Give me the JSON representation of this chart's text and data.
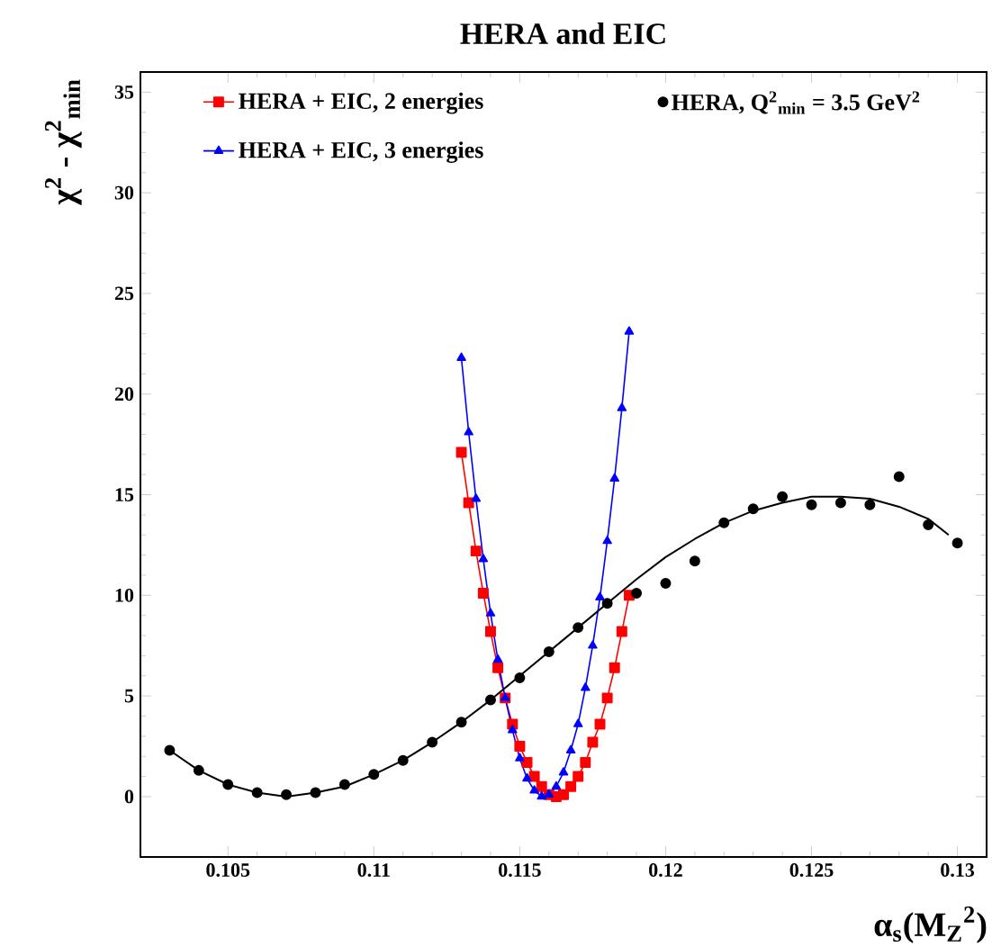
{
  "chart_data": {
    "type": "line",
    "title": "HERA and EIC",
    "xlabel": "α$_{s}$(M$_{Z}$$^{2}$)",
    "ylabel": "χ$^{2}$ - χ$^{2}$$_{min}$",
    "xlim": [
      0.102,
      0.131
    ],
    "ylim": [
      -3,
      36
    ],
    "xticks": [
      0.105,
      0.11,
      0.115,
      0.12,
      0.125,
      0.13
    ],
    "yticks": [
      0,
      5,
      10,
      15,
      20,
      25,
      30,
      35
    ],
    "grid": false,
    "legend": "top",
    "series": [
      {
        "name": "HERA + EIC, 2 energies",
        "marker": "square",
        "color": "#ff0000",
        "x": [
          0.113,
          0.11325,
          0.1135,
          0.11375,
          0.114,
          0.11425,
          0.1145,
          0.11475,
          0.115,
          0.11525,
          0.1155,
          0.11575,
          0.116,
          0.11625,
          0.1165,
          0.11675,
          0.117,
          0.11725,
          0.1175,
          0.11775,
          0.118,
          0.11825,
          0.1185,
          0.11875
        ],
        "values": [
          17.1,
          14.6,
          12.2,
          10.1,
          8.2,
          6.4,
          4.9,
          3.6,
          2.5,
          1.7,
          1.0,
          0.5,
          0.1,
          0.0,
          0.1,
          0.5,
          1.0,
          1.7,
          2.7,
          3.6,
          4.9,
          6.4,
          8.2,
          10.0
        ]
      },
      {
        "name": "HERA, Q$^{2}$$_{min}$ =  3.5 GeV$^{2}$",
        "type": "scatter",
        "marker": "circle",
        "color": "#000000",
        "x": [
          0.103,
          0.104,
          0.105,
          0.106,
          0.107,
          0.108,
          0.109,
          0.11,
          0.111,
          0.112,
          0.113,
          0.114,
          0.115,
          0.116,
          0.117,
          0.118,
          0.119,
          0.12,
          0.121,
          0.122,
          0.123,
          0.124,
          0.125,
          0.126,
          0.127,
          0.128,
          0.129,
          0.13
        ],
        "values": [
          2.3,
          1.3,
          0.6,
          0.2,
          0.1,
          0.2,
          0.6,
          1.1,
          1.8,
          2.7,
          3.7,
          4.8,
          5.9,
          7.2,
          8.4,
          9.6,
          10.1,
          10.6,
          11.7,
          13.6,
          14.3,
          14.9,
          14.5,
          14.6,
          14.5,
          15.9,
          13.5,
          12.6
        ]
      },
      {
        "name": "HERA + EIC, 3 energies",
        "marker": "triangle",
        "color": "#0000ff",
        "x": [
          0.113,
          0.11325,
          0.1135,
          0.11375,
          0.114,
          0.11425,
          0.1145,
          0.11475,
          0.115,
          0.11525,
          0.1155,
          0.11575,
          0.116,
          0.11625,
          0.1165,
          0.11675,
          0.117,
          0.11725,
          0.1175,
          0.11775,
          0.118,
          0.11825,
          0.1185,
          0.11875
        ],
        "values": [
          21.8,
          18.1,
          14.8,
          11.8,
          9.1,
          6.8,
          4.9,
          3.3,
          1.9,
          0.9,
          0.3,
          0.0,
          0.1,
          0.5,
          1.2,
          2.3,
          3.6,
          5.4,
          7.5,
          9.9,
          12.7,
          15.8,
          19.3,
          23.1
        ]
      },
      {
        "marker": "none",
        "color": "#000000",
        "x": [
          0.103,
          0.104,
          0.105,
          0.106,
          0.107,
          0.108,
          0.109,
          0.11,
          0.111,
          0.112,
          0.113,
          0.114,
          0.115,
          0.116,
          0.117,
          0.118,
          0.119,
          0.12,
          0.121,
          0.122,
          0.123,
          0.124,
          0.125,
          0.126,
          0.127,
          0.128,
          0.129,
          0.1297
        ],
        "values": [
          2.3,
          1.3,
          0.6,
          0.2,
          0.0,
          0.2,
          0.5,
          1.1,
          1.8,
          2.7,
          3.7,
          4.8,
          6.0,
          7.2,
          8.4,
          9.6,
          10.8,
          11.9,
          12.8,
          13.6,
          14.2,
          14.6,
          14.9,
          14.9,
          14.8,
          14.4,
          13.8,
          13.0
        ]
      }
    ]
  }
}
